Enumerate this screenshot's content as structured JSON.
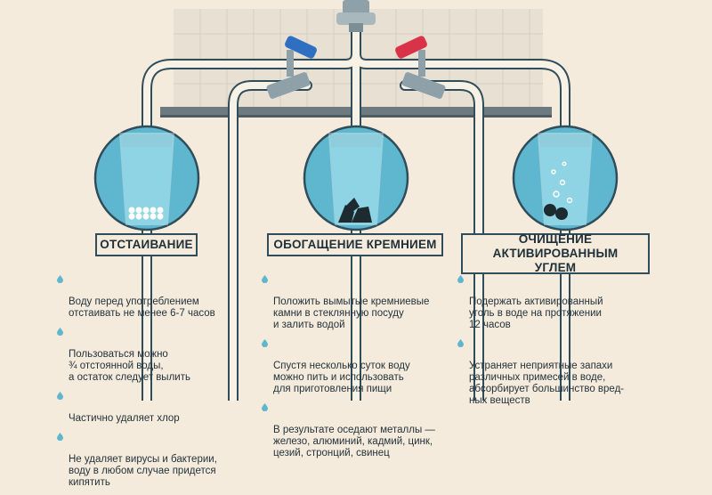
{
  "colors": {
    "background": "#f5ebdc",
    "pipe": "#f8f1e5",
    "pipe_outline": "#2f4d5a",
    "circle": "#5fb7cf",
    "water": "#7cc8dc",
    "hot_valve": "#d9334a",
    "cold_valve": "#2f6fc2"
  },
  "columns": [
    {
      "title": "ОТСТАИВАНИЕ",
      "items": [
        "Воду перед употреблением\nотстаивать не менее 6-7 часов",
        "Пользоваться можно\n¾ отстоянной воды,\nа остаток следует вылить",
        "Частично удаляет хлор",
        "Не удаляет вирусы и бактерии,\nводу в любом случае придется\nкипятить"
      ]
    },
    {
      "title": "ОБОГАЩЕНИЕ КРЕМНИЕМ",
      "items": [
        "Положить вымытые кремниевые\nкамни в стеклянную посуду\nи залить водой",
        "Спустя несколько суток воду\nможно пить и использовать\nдля приготовления пищи",
        "В результате оседают металлы —\nжелезо, алюминий, кадмий, цинк,\nцезий, стронций, свинец"
      ]
    },
    {
      "title": "ОЧИЩЕНИЕ АКТИВИРОВАННЫМ\nУГЛЕМ",
      "items": [
        "Подержать активированный\nуголь в воде на протяжении\n12 часов",
        "Устраняет неприятные запахи\nразличных примесей в воде,\nабсорбирует большинство вред-\nных веществ"
      ]
    }
  ]
}
